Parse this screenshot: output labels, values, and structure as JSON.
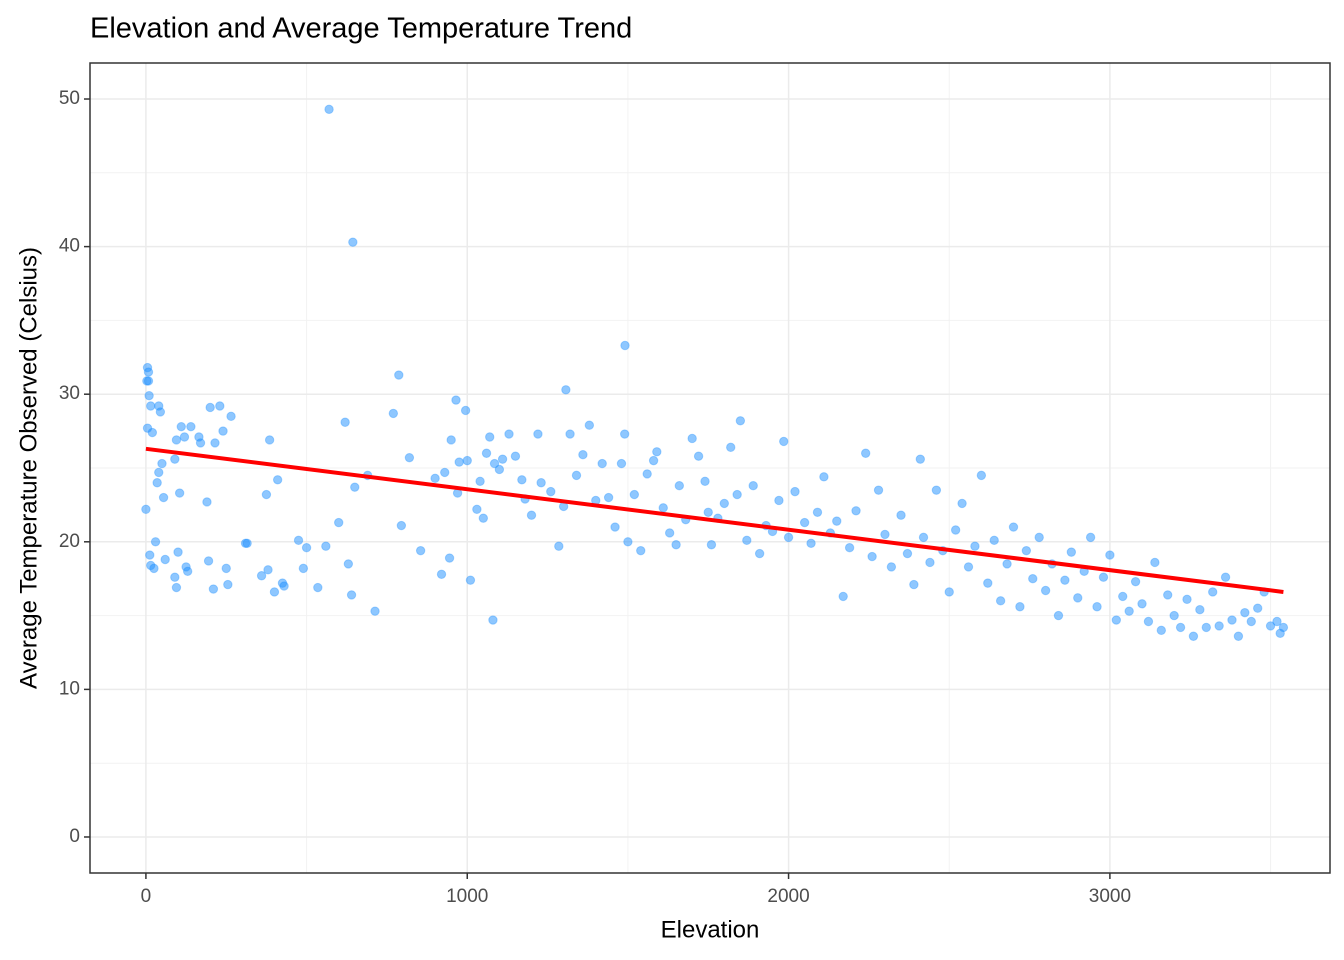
{
  "chart_data": {
    "type": "scatter",
    "title": "Elevation and Average Temperature Trend",
    "x_label": "Elevation",
    "y_label": "Average Temperature Observed (Celsius)",
    "xlim": [
      -174,
      3685
    ],
    "ylim": [
      -2.44,
      52.44
    ],
    "xticks": [
      0,
      1000,
      2000,
      3000
    ],
    "yticks": [
      0,
      10,
      20,
      30,
      40,
      50
    ],
    "minor_xticks": [
      500,
      1500,
      2500,
      3500
    ],
    "minor_yticks": [
      5,
      15,
      25,
      35,
      45
    ],
    "grid": true,
    "points": {
      "color": "#1e90ff",
      "x": [
        0,
        5,
        8,
        3,
        8,
        10,
        15,
        20,
        5,
        12,
        15,
        25,
        30,
        35,
        40,
        50,
        45,
        40,
        55,
        60,
        90,
        95,
        90,
        95,
        100,
        105,
        110,
        120,
        125,
        130,
        140,
        165,
        170,
        190,
        195,
        200,
        210,
        215,
        230,
        240,
        250,
        255,
        265,
        310,
        315,
        360,
        375,
        380,
        385,
        400,
        410,
        425,
        430,
        475,
        490,
        500,
        535,
        560,
        570,
        600,
        620,
        630,
        640,
        644,
        650,
        690,
        713,
        770,
        787,
        795,
        820,
        855,
        900,
        920,
        930,
        945,
        950,
        965,
        970,
        975,
        995,
        1000,
        1010,
        1030,
        1040,
        1050,
        1060,
        1070,
        1080,
        1085,
        1100,
        1110,
        1130,
        1150,
        1170,
        1180,
        1200,
        1220,
        1230,
        1260,
        1285,
        1300,
        1307,
        1320,
        1340,
        1360,
        1380,
        1400,
        1420,
        1440,
        1460,
        1480,
        1491,
        1490,
        1500,
        1520,
        1540,
        1560,
        1580,
        1590,
        1610,
        1630,
        1650,
        1660,
        1680,
        1700,
        1720,
        1740,
        1750,
        1760,
        1780,
        1800,
        1820,
        1840,
        1850,
        1870,
        1890,
        1910,
        1930,
        1950,
        1970,
        1985,
        2000,
        2020,
        2050,
        2070,
        2090,
        2110,
        2130,
        2150,
        2170,
        2190,
        2210,
        2240,
        2260,
        2280,
        2300,
        2320,
        2350,
        2370,
        2390,
        2410,
        2420,
        2440,
        2460,
        2480,
        2500,
        2520,
        2540,
        2560,
        2580,
        2600,
        2620,
        2640,
        2660,
        2680,
        2700,
        2720,
        2740,
        2760,
        2780,
        2800,
        2820,
        2840,
        2860,
        2880,
        2900,
        2920,
        2940,
        2960,
        2980,
        3000,
        3020,
        3040,
        3060,
        3080,
        3100,
        3120,
        3140,
        3160,
        3180,
        3200,
        3220,
        3240,
        3260,
        3280,
        3300,
        3320,
        3340,
        3360,
        3380,
        3400,
        3420,
        3440,
        3460,
        3480,
        3500,
        3520,
        3530,
        3540
      ],
      "values": [
        22.2,
        31.8,
        31.5,
        30.9,
        30.9,
        29.9,
        29.2,
        27.4,
        27.7,
        19.1,
        18.4,
        18.2,
        20.0,
        24.0,
        24.7,
        25.3,
        28.8,
        29.2,
        23.0,
        18.8,
        25.6,
        26.9,
        17.6,
        16.9,
        19.3,
        23.3,
        27.8,
        27.1,
        18.3,
        18.0,
        27.8,
        27.1,
        26.7,
        22.7,
        18.7,
        29.1,
        16.8,
        26.7,
        29.2,
        27.5,
        18.2,
        17.1,
        28.5,
        19.9,
        19.9,
        17.7,
        23.2,
        18.1,
        26.9,
        16.6,
        24.2,
        17.2,
        17.0,
        20.1,
        18.2,
        19.6,
        16.9,
        19.7,
        49.3,
        21.3,
        28.1,
        18.5,
        16.4,
        40.3,
        23.7,
        24.5,
        15.3,
        28.7,
        31.3,
        21.1,
        25.7,
        19.4,
        24.3,
        17.8,
        24.7,
        18.9,
        26.9,
        29.6,
        23.3,
        25.4,
        28.9,
        25.5,
        17.4,
        22.2,
        24.1,
        21.6,
        26.0,
        27.1,
        14.7,
        25.3,
        24.9,
        25.6,
        27.3,
        25.8,
        24.2,
        22.9,
        21.8,
        27.3,
        24.0,
        23.4,
        19.7,
        22.4,
        30.3,
        27.3,
        24.5,
        25.9,
        27.9,
        22.8,
        25.3,
        23.0,
        21.0,
        25.3,
        33.3,
        27.3,
        20.0,
        23.2,
        19.4,
        24.6,
        25.5,
        26.1,
        22.3,
        20.6,
        19.8,
        23.8,
        21.5,
        27.0,
        25.8,
        24.1,
        22.0,
        19.8,
        21.6,
        22.6,
        26.4,
        23.2,
        28.2,
        20.1,
        23.8,
        19.2,
        21.1,
        20.7,
        22.8,
        26.8,
        20.3,
        23.4,
        21.3,
        19.9,
        22.0,
        24.4,
        20.6,
        21.4,
        16.3,
        19.6,
        22.1,
        26.0,
        19.0,
        23.5,
        20.5,
        18.3,
        21.8,
        19.2,
        17.1,
        25.6,
        20.3,
        18.6,
        23.5,
        19.4,
        16.6,
        20.8,
        22.6,
        18.3,
        19.7,
        24.5,
        17.2,
        20.1,
        16.0,
        18.5,
        21.0,
        15.6,
        19.4,
        17.5,
        20.3,
        16.7,
        18.5,
        15.0,
        17.4,
        19.3,
        16.2,
        18.0,
        20.3,
        15.6,
        17.6,
        19.1,
        14.7,
        16.3,
        15.3,
        17.3,
        15.8,
        14.6,
        18.6,
        14.0,
        16.4,
        15.0,
        14.2,
        16.1,
        13.6,
        15.4,
        14.2,
        16.6,
        14.3,
        17.6,
        14.7,
        13.6,
        15.2,
        14.6,
        15.5,
        16.6,
        14.3,
        14.6,
        13.8,
        14.2
      ]
    },
    "trend": {
      "color": "#ff0000",
      "x": [
        0,
        3540
      ],
      "values": [
        26.3,
        16.6
      ]
    }
  }
}
